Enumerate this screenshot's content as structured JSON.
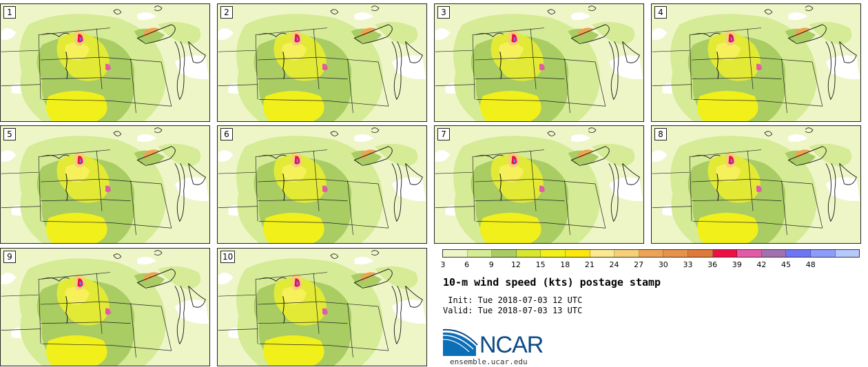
{
  "panels": [
    "1",
    "2",
    "3",
    "4",
    "5",
    "6",
    "7",
    "8",
    "9",
    "10"
  ],
  "colorbar": {
    "ticks": [
      "3",
      "6",
      "9",
      "12",
      "15",
      "18",
      "21",
      "24",
      "27",
      "30",
      "33",
      "36",
      "39",
      "42",
      "45",
      "48"
    ],
    "colors": [
      "#eef6c8",
      "#d5eb96",
      "#a9cc63",
      "#d8e62e",
      "#f1f01a",
      "#fbe80a",
      "#fbe98f",
      "#f6cf77",
      "#eda452",
      "#e7914a",
      "#df7a3a",
      "#ee0f47",
      "#e35aa6",
      "#a071ae",
      "#6e76f6",
      "#8c9cf9",
      "#b5c9fc"
    ]
  },
  "title": "10-m wind speed (kts) postage stamp",
  "init_text": " Init: Tue 2018-07-03 12 UTC",
  "valid_text": "Valid: Tue 2018-07-03 13 UTC",
  "logo": {
    "text": "NCAR",
    "site": "ensemble.ucar.edu",
    "color": "#0b4a86"
  }
}
